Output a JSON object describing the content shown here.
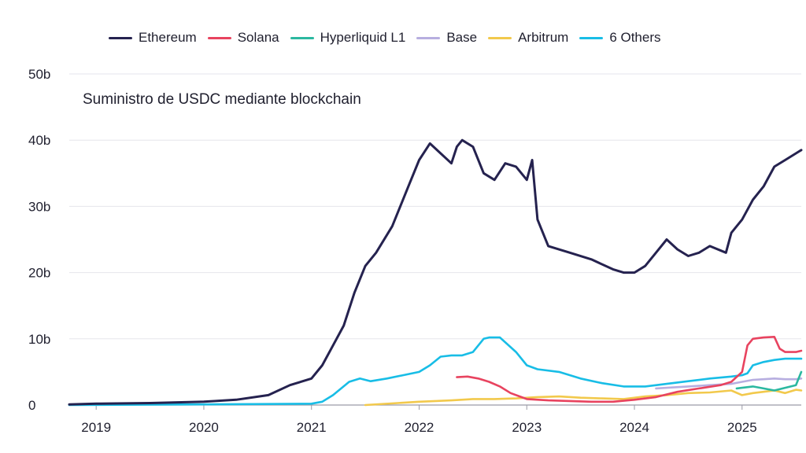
{
  "chart_data": {
    "type": "line",
    "title": "Suministro de USDC mediante blockchain",
    "xlabel": "",
    "ylabel": "",
    "xlim": [
      2018.75,
      2025.55
    ],
    "ylim": [
      0,
      50
    ],
    "y_ticks": [
      {
        "value": 0,
        "label": "0"
      },
      {
        "value": 10,
        "label": "10b"
      },
      {
        "value": 20,
        "label": "20b"
      },
      {
        "value": 30,
        "label": "30b"
      },
      {
        "value": 40,
        "label": "40b"
      },
      {
        "value": 50,
        "label": "50b"
      }
    ],
    "x_ticks": [
      {
        "value": 2019.0,
        "label": "2019"
      },
      {
        "value": 2020.0,
        "label": "2020"
      },
      {
        "value": 2021.0,
        "label": "2021"
      },
      {
        "value": 2022.0,
        "label": "2022"
      },
      {
        "value": 2023.0,
        "label": "2023"
      },
      {
        "value": 2024.0,
        "label": "2024"
      },
      {
        "value": 2025.0,
        "label": "2025"
      }
    ],
    "grid": "horizontal",
    "legend_position": "top",
    "series": [
      {
        "name": "Ethereum",
        "color": "#25224f",
        "x": [
          2018.75,
          2019.0,
          2019.5,
          2020.0,
          2020.3,
          2020.6,
          2020.8,
          2021.0,
          2021.1,
          2021.2,
          2021.3,
          2021.4,
          2021.5,
          2021.6,
          2021.75,
          2021.9,
          2022.0,
          2022.1,
          2022.2,
          2022.3,
          2022.35,
          2022.4,
          2022.5,
          2022.6,
          2022.7,
          2022.8,
          2022.9,
          2023.0,
          2023.05,
          2023.1,
          2023.2,
          2023.4,
          2023.6,
          2023.8,
          2023.9,
          2024.0,
          2024.1,
          2024.2,
          2024.3,
          2024.4,
          2024.5,
          2024.6,
          2024.7,
          2024.85,
          2024.9,
          2025.0,
          2025.1,
          2025.2,
          2025.3,
          2025.4,
          2025.5,
          2025.55
        ],
        "y": [
          0.1,
          0.2,
          0.3,
          0.5,
          0.8,
          1.5,
          3,
          4,
          6,
          9,
          12,
          17,
          21,
          23,
          27,
          33,
          37,
          39.5,
          38,
          36.5,
          39,
          40,
          39,
          35,
          34,
          36.5,
          36,
          34,
          37,
          28,
          24,
          23,
          22,
          20.5,
          20,
          20,
          21,
          23,
          25,
          23.5,
          22.5,
          23,
          24,
          23,
          26,
          28,
          31,
          33,
          36,
          37,
          38,
          38.5
        ]
      },
      {
        "name": "Solana",
        "color": "#e8435f",
        "x": [
          2022.35,
          2022.45,
          2022.55,
          2022.65,
          2022.75,
          2022.85,
          2022.95,
          2023.0,
          2023.2,
          2023.4,
          2023.6,
          2023.8,
          2024.0,
          2024.2,
          2024.4,
          2024.6,
          2024.8,
          2024.9,
          2025.0,
          2025.05,
          2025.1,
          2025.2,
          2025.3,
          2025.35,
          2025.4,
          2025.5,
          2025.55
        ],
        "y": [
          4.2,
          4.3,
          4,
          3.5,
          2.8,
          1.8,
          1.2,
          0.9,
          0.7,
          0.6,
          0.5,
          0.5,
          0.8,
          1.2,
          2,
          2.5,
          3,
          3.5,
          5,
          9,
          10,
          10.2,
          10.3,
          8.5,
          8,
          8,
          8.2
        ]
      },
      {
        "name": "Hyperliquid L1",
        "color": "#2bb8a0",
        "x": [
          2024.95,
          2025.0,
          2025.1,
          2025.2,
          2025.3,
          2025.4,
          2025.5,
          2025.55
        ],
        "y": [
          2.5,
          2.6,
          2.8,
          2.5,
          2.2,
          2.6,
          3,
          5
        ]
      },
      {
        "name": "Base",
        "color": "#b7aee0",
        "x": [
          2024.2,
          2024.3,
          2024.5,
          2024.7,
          2024.9,
          2025.0,
          2025.1,
          2025.2,
          2025.3,
          2025.4,
          2025.5,
          2025.55
        ],
        "y": [
          2.5,
          2.6,
          2.8,
          3,
          3.2,
          3.5,
          3.8,
          3.9,
          4,
          3.9,
          3.9,
          4
        ]
      },
      {
        "name": "Arbitrum",
        "color": "#f2c94c",
        "x": [
          2021.5,
          2021.8,
          2022.0,
          2022.3,
          2022.5,
          2022.7,
          2022.9,
          2023.1,
          2023.3,
          2023.5,
          2023.7,
          2023.9,
          2024.1,
          2024.3,
          2024.5,
          2024.7,
          2024.9,
          2025.0,
          2025.1,
          2025.2,
          2025.3,
          2025.4,
          2025.5,
          2025.55
        ],
        "y": [
          0,
          0.3,
          0.5,
          0.7,
          0.9,
          0.9,
          1,
          1.2,
          1.3,
          1.1,
          1,
          0.9,
          1.3,
          1.5,
          1.8,
          1.9,
          2.2,
          1.5,
          1.8,
          2,
          2.2,
          1.8,
          2.3,
          2.2
        ]
      },
      {
        "name": "6 Others",
        "color": "#18bde6",
        "x": [
          2018.75,
          2020.0,
          2021.0,
          2021.1,
          2021.2,
          2021.35,
          2021.45,
          2021.55,
          2021.7,
          2021.85,
          2022.0,
          2022.1,
          2022.2,
          2022.3,
          2022.4,
          2022.5,
          2022.6,
          2022.65,
          2022.75,
          2022.9,
          2023.0,
          2023.1,
          2023.3,
          2023.5,
          2023.7,
          2023.9,
          2024.1,
          2024.3,
          2024.5,
          2024.7,
          2024.9,
          2025.0,
          2025.05,
          2025.1,
          2025.2,
          2025.3,
          2025.4,
          2025.5,
          2025.55
        ],
        "y": [
          0,
          0.1,
          0.2,
          0.5,
          1.5,
          3.5,
          4,
          3.6,
          4,
          4.5,
          5,
          6,
          7.3,
          7.5,
          7.5,
          8,
          10,
          10.2,
          10.2,
          8,
          6,
          5.4,
          5,
          4,
          3.3,
          2.8,
          2.8,
          3.2,
          3.6,
          4,
          4.3,
          4.5,
          4.8,
          6,
          6.5,
          6.8,
          7,
          7,
          7
        ]
      }
    ]
  }
}
